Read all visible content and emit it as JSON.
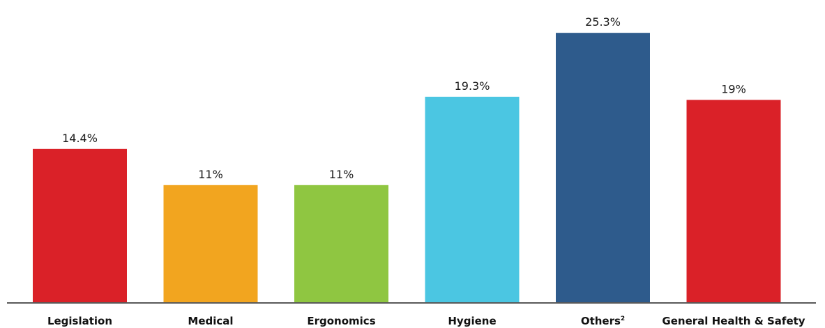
{
  "chart_data": {
    "type": "bar",
    "categories": [
      "Legislation",
      "Medical",
      "Ergonomics",
      "Hygiene",
      "Others",
      "General Health & Safety"
    ],
    "category_superscripts": [
      "",
      "",
      "",
      "",
      "2",
      ""
    ],
    "values": [
      14.4,
      11,
      11,
      19.3,
      25.3,
      19
    ],
    "value_labels": [
      "14.4%",
      "11%",
      "11%",
      "19.3%",
      "25.3%",
      "19%"
    ],
    "colors": [
      "#da2128",
      "#f2a51f",
      "#8fc641",
      "#4bc6e2",
      "#2e5b8c",
      "#da2128"
    ],
    "title": "",
    "xlabel": "",
    "ylabel": "",
    "ylim": [
      0,
      27.6
    ],
    "grid": false,
    "legend": "none"
  }
}
